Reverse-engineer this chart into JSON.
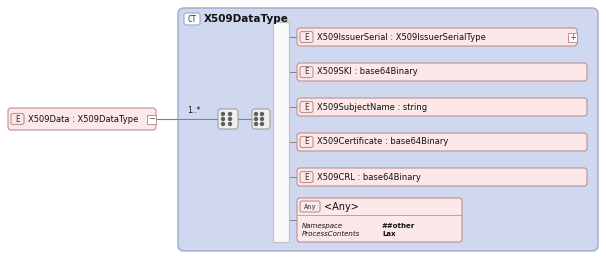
{
  "bg_color": "#ffffff",
  "outer_box_color": "#d0d8f0",
  "outer_box_border": "#a0a8c8",
  "elem_box_fill": "#fce8e8",
  "elem_box_border": "#c09090",
  "any_box_fill": "#fce8e8",
  "any_box_border": "#c09090",
  "ct_label": "X509DataType",
  "ct_badge": "CT",
  "main_elem_label": "X509Data : X509DataType",
  "main_elem_badge": "E",
  "elements": [
    {
      "badge": "E",
      "label": "X509IssuerSerial : X509IssuerSerialType",
      "has_expand": true
    },
    {
      "badge": "E",
      "label": "X509SKI : base64Binary",
      "has_expand": false
    },
    {
      "badge": "E",
      "label": "X509SubjectName : string",
      "has_expand": false
    },
    {
      "badge": "E",
      "label": "X509Certificate : base64Binary",
      "has_expand": false
    },
    {
      "badge": "E",
      "label": "X509CRL : base64Binary",
      "has_expand": false
    }
  ],
  "any_badge": "Any",
  "any_label": "<Any>",
  "any_namespace_label": "Namespace",
  "any_namespace_value": "##other",
  "any_process_label": "ProcessContents",
  "any_process_value": "Lax",
  "multiplicity": "1..*",
  "connector_color": "#808080",
  "badge_text_color": "#333333",
  "label_text_color": "#111111",
  "seq_box_fill": "#f0f0f0",
  "seq_box_border": "#a0a0a0",
  "white_bar_fill": "#f8f8f8",
  "white_bar_border": "#c0c0c0"
}
